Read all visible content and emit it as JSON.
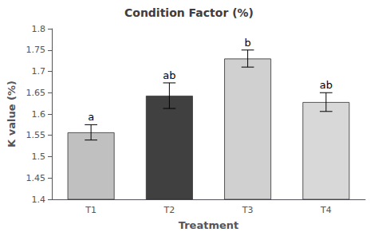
{
  "chart_data": {
    "type": "bar",
    "title": "Condition Factor (%)",
    "xlabel": "Treatment",
    "ylabel": "K value (%)",
    "categories": [
      "T1",
      "T2",
      "T3",
      "T4"
    ],
    "values": [
      1.557,
      1.643,
      1.73,
      1.628
    ],
    "errors": [
      0.018,
      0.03,
      0.02,
      0.022
    ],
    "annotations": [
      "a",
      "ab",
      "b",
      "ab"
    ],
    "colors": [
      "#c0c0c0",
      "#404040",
      "#d0d0d0",
      "#d8d8d8"
    ],
    "ylim": [
      1.4,
      1.8
    ],
    "yticks": [
      1.4,
      1.45,
      1.5,
      1.55,
      1.6,
      1.65,
      1.7,
      1.75,
      1.8
    ],
    "grid": false
  }
}
